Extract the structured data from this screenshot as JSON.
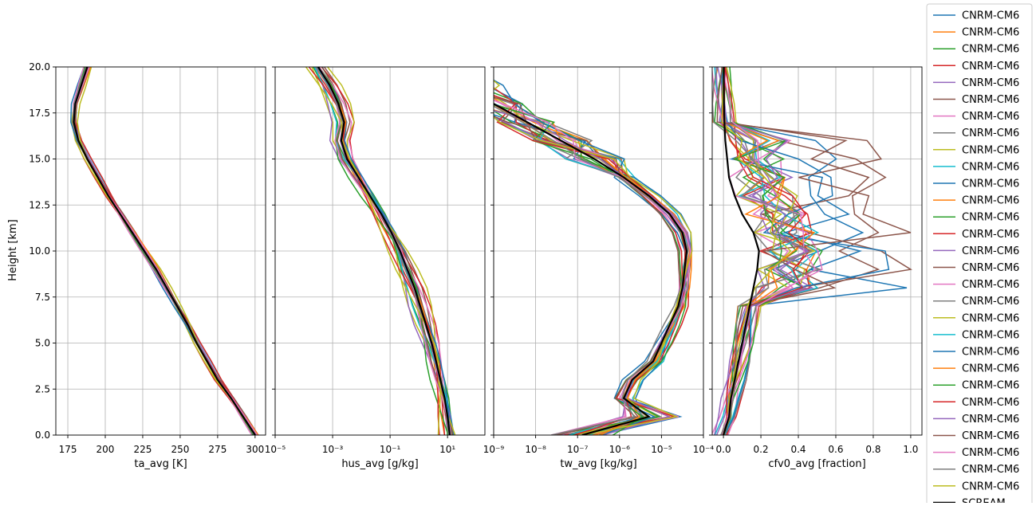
{
  "chart_data": {
    "type": "line",
    "shared_y": {
      "label": "Height [km]",
      "range": [
        0,
        20
      ],
      "ticks": [
        0.0,
        2.5,
        5.0,
        7.5,
        10.0,
        12.5,
        15.0,
        17.5,
        20.0
      ],
      "tick_labels": [
        "0.0",
        "2.5",
        "5.0",
        "7.5",
        "10.0",
        "12.5",
        "15.0",
        "17.5",
        "20.0"
      ]
    },
    "grid": true,
    "legend_placement": "right",
    "series_names": [
      "CNRM-CM6",
      "CNRM-CM6",
      "CNRM-CM6",
      "CNRM-CM6",
      "CNRM-CM6",
      "CNRM-CM6",
      "CNRM-CM6",
      "CNRM-CM6",
      "CNRM-CM6",
      "CNRM-CM6",
      "CNRM-CM6",
      "CNRM-CM6",
      "CNRM-CM6",
      "CNRM-CM6",
      "CNRM-CM6",
      "CNRM-CM6",
      "CNRM-CM6",
      "CNRM-CM6",
      "CNRM-CM6",
      "CNRM-CM6",
      "CNRM-CM6",
      "CNRM-CM6",
      "CNRM-CM6",
      "CNRM-CM6",
      "CNRM-CM6",
      "CNRM-CM6",
      "CNRM-CM6",
      "CNRM-CM6",
      "CNRM-CM6"
    ],
    "reference_name": "SCREAM",
    "colors": [
      "#1f77b4",
      "#ff7f0e",
      "#2ca02c",
      "#d62728",
      "#9467bd",
      "#8c564b",
      "#e377c2",
      "#7f7f7f",
      "#bcbd22",
      "#17becf"
    ],
    "reference_color": "#000000",
    "heights": [
      0,
      1,
      2,
      3,
      4,
      5,
      6,
      7,
      8,
      9,
      10,
      11,
      12,
      13,
      14,
      15,
      16,
      17,
      18,
      19,
      20
    ],
    "panels": [
      {
        "xlabel": "ta_avg [K]",
        "scale": "linear",
        "xlim": [
          167,
          307
        ],
        "ticks": [
          175,
          200,
          225,
          250,
          275,
          300
        ],
        "tick_labels": [
          "175",
          "200",
          "225",
          "250",
          "275",
          "300"
        ],
        "reference": [
          300,
          292,
          284,
          275,
          268,
          261,
          255,
          248,
          241,
          234,
          226,
          218,
          210,
          202,
          195,
          188,
          182,
          179,
          180,
          184,
          188
        ]
      },
      {
        "xlabel": "hus_avg [g/kg]",
        "scale": "log",
        "xlim": [
          -5,
          2.3
        ],
        "ticks": [
          -5,
          -3,
          -1,
          1
        ],
        "tick_labels": [
          "10⁻⁵",
          "10⁻³",
          "10⁻¹",
          "10¹"
        ],
        "reference": [
          1.08,
          1.0,
          0.9,
          0.75,
          0.6,
          0.45,
          0.25,
          0.05,
          -0.15,
          -0.4,
          -0.65,
          -0.95,
          -1.3,
          -1.7,
          -2.1,
          -2.5,
          -2.7,
          -2.6,
          -2.8,
          -3.1,
          -3.5
        ]
      },
      {
        "xlabel": "tw_avg [kg/kg]",
        "scale": "log",
        "xlim": [
          -9,
          -4
        ],
        "ticks": [
          -9,
          -8,
          -7,
          -6,
          -5,
          -4
        ],
        "tick_labels": [
          "10⁻⁹",
          "10⁻⁸",
          "10⁻⁷",
          "10⁻⁶",
          "10⁻⁵",
          "10⁻⁴"
        ],
        "reference": [
          -6.9,
          -5.3,
          -5.9,
          -5.7,
          -5.2,
          -5.0,
          -4.8,
          -4.6,
          -4.5,
          -4.45,
          -4.4,
          -4.5,
          -4.8,
          -5.3,
          -5.9,
          -6.6,
          -7.4,
          -8.2,
          -9.0,
          -9.5,
          -9.8
        ]
      },
      {
        "xlabel": "cfv0_avg [fraction]",
        "scale": "linear",
        "xlim": [
          -0.06,
          1.06
        ],
        "ticks": [
          0.0,
          0.2,
          0.4,
          0.6,
          0.8,
          1.0
        ],
        "tick_labels": [
          "0.0",
          "0.2",
          "0.4",
          "0.6",
          "0.8",
          "1.0"
        ],
        "reference": [
          0.0,
          0.03,
          0.04,
          0.06,
          0.08,
          0.1,
          0.12,
          0.14,
          0.16,
          0.18,
          0.19,
          0.16,
          0.1,
          0.06,
          0.03,
          0.02,
          0.01,
          0.005,
          0.003,
          0.002,
          0.002
        ]
      }
    ]
  }
}
